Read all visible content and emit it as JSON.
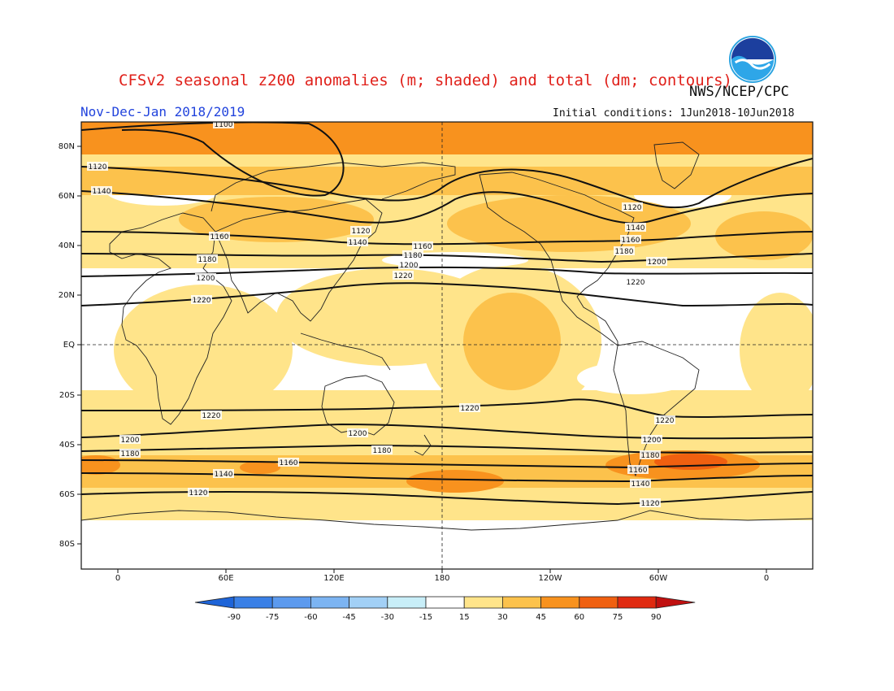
{
  "header": {
    "title": "CFSv2 seasonal z200 anomalies (m; shaded) and total (dm; contours)",
    "agency": "NWS/NCEP/CPC",
    "period": "Nov-Dec-Jan 2018/2019",
    "initial_conditions": "Initial conditions: 1Jun2018-10Jun2018",
    "logo_text": "NOAA"
  },
  "map": {
    "lat_labels": [
      "80N",
      "60N",
      "40N",
      "20N",
      "EQ",
      "20S",
      "40S",
      "60S",
      "80S"
    ],
    "lon_labels": [
      "0",
      "60E",
      "120E",
      "180",
      "120W",
      "60W",
      "0"
    ]
  },
  "contours": [
    {
      "label": "1100",
      "color": "#111111"
    },
    {
      "label": "1120",
      "color": "#111111"
    },
    {
      "label": "1140",
      "color": "#111111"
    },
    {
      "label": "1160",
      "color": "#111111"
    },
    {
      "label": "1180",
      "color": "#111111"
    },
    {
      "label": "1200",
      "color": "#111111"
    },
    {
      "label": "1220",
      "color": "#111111"
    }
  ],
  "colorbar": {
    "levels": [
      "-90",
      "-75",
      "-60",
      "-45",
      "-30",
      "-15",
      "15",
      "30",
      "45",
      "60",
      "75",
      "90"
    ],
    "colors": [
      "#1e64d8",
      "#3a80e6",
      "#5c9aee",
      "#7cb4f2",
      "#a2d0f6",
      "#c8eef8",
      "#ffffff",
      "#ffe48a",
      "#fcc24c",
      "#f8921e",
      "#f06010",
      "#e02a10",
      "#c01010"
    ]
  }
}
